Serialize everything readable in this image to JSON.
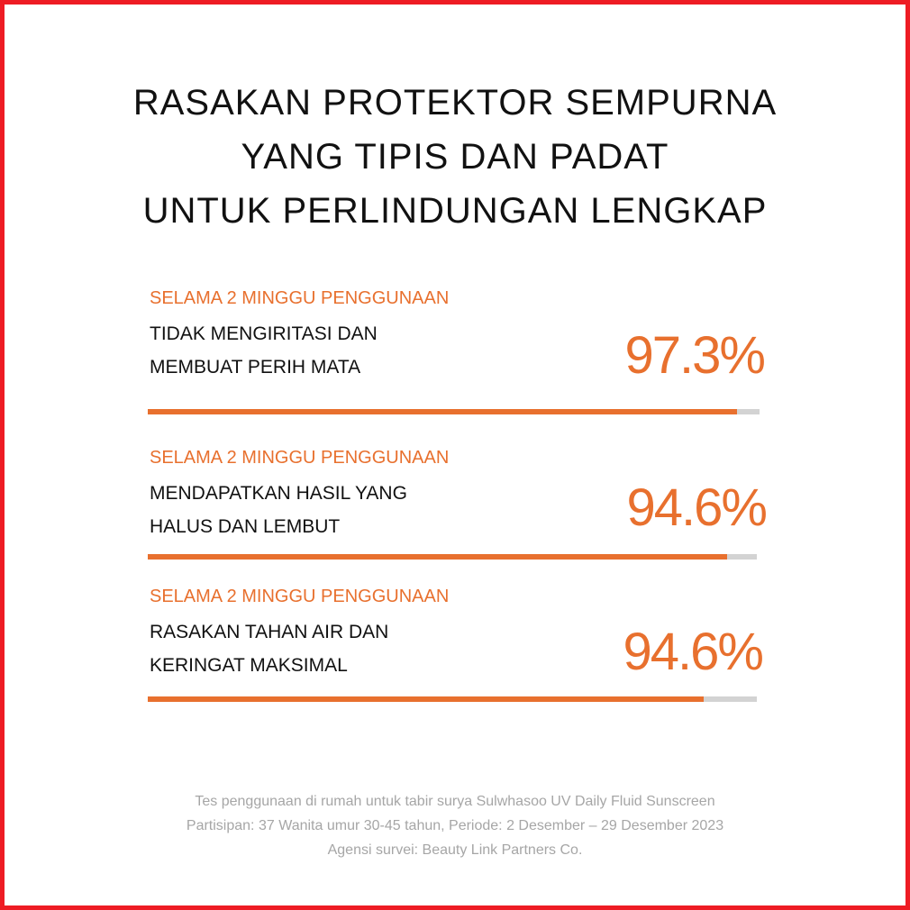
{
  "headline": {
    "line1": "RASAKAN PROTEKTOR SEMPURNA",
    "line2": "YANG TIPIS DAN PADAT",
    "line3": "UNTUK PERLINDUNGAN LENGKAP"
  },
  "stats": [
    {
      "period": "SELAMA 2 MINGGU PENGGUNAAN",
      "line1": "TIDAK MENGIRITASI DAN",
      "line2": "MEMBUAT PERIH MATA",
      "value_label": "97.3%",
      "value": 0.973
    },
    {
      "period": "SELAMA 2 MINGGU PENGGUNAAN",
      "line1": "MENDAPATKAN HASIL YANG",
      "line2": "HALUS DAN LEMBUT",
      "value_label": "94.6%",
      "value": 0.946
    },
    {
      "period": "SELAMA 2 MINGGU PENGGUNAAN",
      "line1": "RASAKAN TAHAN AIR DAN",
      "line2": "KERINGAT MAKSIMAL",
      "value_label": "94.6%",
      "value": 0.946
    }
  ],
  "footnote": {
    "line1": "Tes penggunaan di rumah untuk tabir surya Sulwhasoo UV Daily Fluid Sunscreen",
    "line2": "Partisipan: 37 Wanita umur 30-45 tahun, Periode: 2 Desember – 29 Desember 2023",
    "line3": "Agensi survei: Beauty Link Partners Co."
  },
  "colors": {
    "accent": "#e8702e",
    "border": "#ee1c24",
    "track": "#d3d3d3"
  }
}
